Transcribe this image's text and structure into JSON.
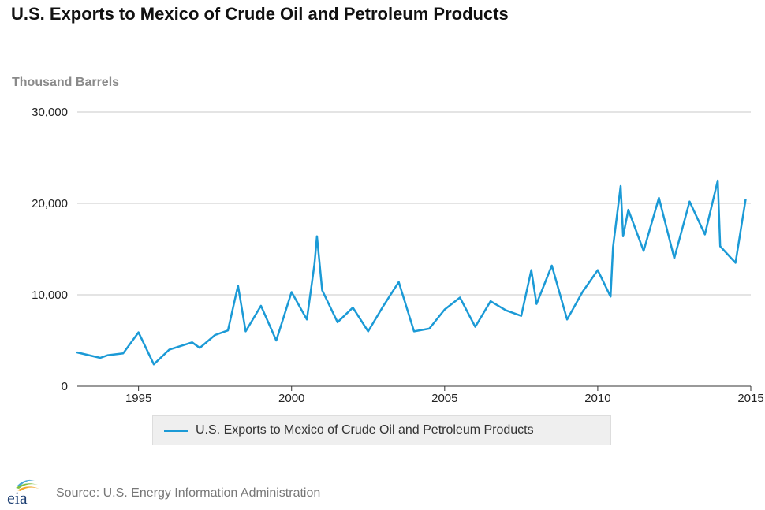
{
  "header": {
    "title": "U.S. Exports to Mexico of Crude Oil and Petroleum Products"
  },
  "colors": {
    "series": "#1b9ad6",
    "grid": "#c8c8c8",
    "axis": "#333333"
  },
  "logo": {
    "text": "eia",
    "icon": "eia-logo-icon"
  },
  "footer": {
    "source": "Source: U.S. Energy Information Administration"
  },
  "chart_data": {
    "type": "line",
    "title": "U.S. Exports to Mexico of Crude Oil and Petroleum Products",
    "ylabel": "Thousand Barrels",
    "xlabel": "",
    "ylim": [
      0,
      30000
    ],
    "xlim": [
      1993,
      2015
    ],
    "yticks": [
      0,
      10000,
      20000,
      30000
    ],
    "ytick_labels": [
      "0",
      "10,000",
      "20,000",
      "30,000"
    ],
    "xticks": [
      1995,
      2000,
      2005,
      2010,
      2015
    ],
    "xtick_labels": [
      "1995",
      "2000",
      "2005",
      "2010",
      "2015"
    ],
    "grid": true,
    "legend_position": "bottom",
    "series": [
      {
        "name": "U.S. Exports to Mexico of Crude Oil and Petroleum Products",
        "x": [
          1993,
          1993.75,
          1994,
          1994.5,
          1995,
          1995.5,
          1996,
          1996.75,
          1997,
          1997.5,
          1997.92,
          1998.25,
          1998.5,
          1999,
          1999.5,
          2000,
          2000.5,
          2000.75,
          2000.83,
          2001,
          2001.5,
          2002,
          2002.5,
          2003,
          2003.5,
          2004,
          2004.5,
          2005,
          2005.5,
          2006,
          2006.5,
          2007,
          2007.5,
          2007.83,
          2008,
          2008.5,
          2009,
          2009.5,
          2010,
          2010.42,
          2010.5,
          2010.75,
          2010.83,
          2011,
          2011.5,
          2012,
          2012.5,
          2013,
          2013.5,
          2013.92,
          2014,
          2014.5,
          2014.83
        ],
        "values": [
          3700,
          3100,
          3400,
          3600,
          5900,
          2400,
          4000,
          4800,
          4200,
          5600,
          6100,
          11000,
          6000,
          8800,
          5000,
          10300,
          7300,
          13400,
          16400,
          10500,
          7000,
          8600,
          6000,
          8800,
          11400,
          6000,
          6300,
          8400,
          9700,
          6500,
          9300,
          8300,
          7700,
          12700,
          9000,
          13200,
          7300,
          10300,
          12700,
          9800,
          15200,
          21900,
          16400,
          19300,
          14800,
          20600,
          14000,
          20200,
          16600,
          22500,
          15300,
          13500,
          20400
        ]
      }
    ]
  }
}
